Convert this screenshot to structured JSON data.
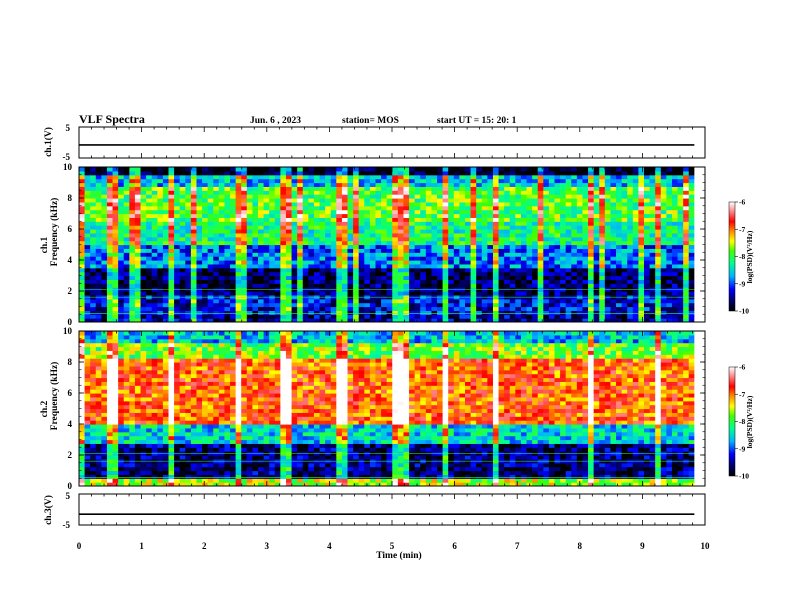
{
  "header": {
    "title": "VLF Spectra",
    "date": "Jun. 6 , 2023",
    "station": "station= MOS",
    "start_time": "start UT = 15: 20: 1"
  },
  "chart_data": [
    {
      "type": "line",
      "name": "ch1_waveform",
      "ylabel": "ch.1(V)",
      "ylim": [
        -5,
        5
      ],
      "yticks": [
        "5",
        "-5"
      ],
      "x": [
        0,
        9.83
      ],
      "y": [
        -0.8,
        -0.8
      ]
    },
    {
      "type": "heatmap",
      "name": "ch1_spectrogram",
      "ylabel_top": "ch.1",
      "ylabel": "Frequency (kHz)",
      "ylim": [
        0,
        10
      ],
      "yticks": [
        "0",
        "2",
        "4",
        "6",
        "8",
        "10"
      ],
      "xlim": [
        0,
        10
      ],
      "data_end_min": 9.83,
      "colorbar": {
        "label": "log(PSD)(V²/Hz)",
        "range": [
          -10,
          -6
        ],
        "ticks": [
          "-6",
          "-7",
          "-8",
          "-9",
          "-10"
        ]
      },
      "bands": [
        {
          "from_khz": 0,
          "to_khz": 0.4,
          "log_psd": -9.5
        },
        {
          "from_khz": 0.4,
          "to_khz": 1.8,
          "log_psd": -9.3
        },
        {
          "from_khz": 1.8,
          "to_khz": 3.5,
          "log_psd": -9.7
        },
        {
          "from_khz": 3.5,
          "to_khz": 5.0,
          "log_psd": -8.9
        },
        {
          "from_khz": 5.0,
          "to_khz": 6.5,
          "log_psd": -8.2
        },
        {
          "from_khz": 6.5,
          "to_khz": 8.8,
          "log_psd": -7.9
        },
        {
          "from_khz": 8.8,
          "to_khz": 9.4,
          "log_psd": -8.6
        },
        {
          "from_khz": 9.4,
          "to_khz": 10,
          "log_psd": -10
        }
      ],
      "bursts_min": [
        0.05,
        0.55,
        0.9,
        1.5,
        1.85,
        2.55,
        2.65,
        3.3,
        3.55,
        4.2,
        4.45,
        5.1,
        5.2,
        5.85,
        6.3,
        6.65,
        7.4,
        8.2,
        8.35,
        9.0,
        9.25,
        9.7
      ]
    },
    {
      "type": "heatmap",
      "name": "ch2_spectrogram",
      "ylabel_top": "ch.2",
      "ylabel": "Frequency (kHz)",
      "ylim": [
        0,
        10
      ],
      "yticks": [
        "0",
        "2",
        "4",
        "6",
        "8",
        "10"
      ],
      "xlim": [
        0,
        10
      ],
      "data_end_min": 9.83,
      "colorbar": {
        "label": "log(PSD)(V²/Hz)",
        "range": [
          -10,
          -6
        ],
        "ticks": [
          "-6",
          "-7",
          "-8",
          "-9",
          "-10"
        ]
      },
      "bands": [
        {
          "from_khz": 0,
          "to_khz": 0.5,
          "log_psd": -7.6
        },
        {
          "from_khz": 0.5,
          "to_khz": 2.8,
          "log_psd": -9.6
        },
        {
          "from_khz": 2.8,
          "to_khz": 4.0,
          "log_psd": -8.5
        },
        {
          "from_khz": 4.0,
          "to_khz": 8.2,
          "log_psd": -6.9
        },
        {
          "from_khz": 8.2,
          "to_khz": 9.2,
          "log_psd": -7.8
        },
        {
          "from_khz": 9.2,
          "to_khz": 10,
          "log_psd": -8.6
        }
      ],
      "bursts_min": [
        0.05,
        0.55,
        1.5,
        2.55,
        3.3,
        4.2,
        5.1,
        5.2,
        5.85,
        6.65,
        8.2,
        9.25
      ]
    },
    {
      "type": "line",
      "name": "ch3_waveform",
      "ylabel": "ch.3(V)",
      "ylim": [
        -5,
        5
      ],
      "yticks": [
        "5",
        "-5"
      ],
      "x": [
        0,
        9.83
      ],
      "y": [
        -1.5,
        -1.5
      ]
    }
  ],
  "xaxis": {
    "label": "Time (min)",
    "range": [
      0,
      10
    ],
    "ticks": [
      "0",
      "1",
      "2",
      "3",
      "4",
      "5",
      "6",
      "7",
      "8",
      "9",
      "10"
    ]
  }
}
